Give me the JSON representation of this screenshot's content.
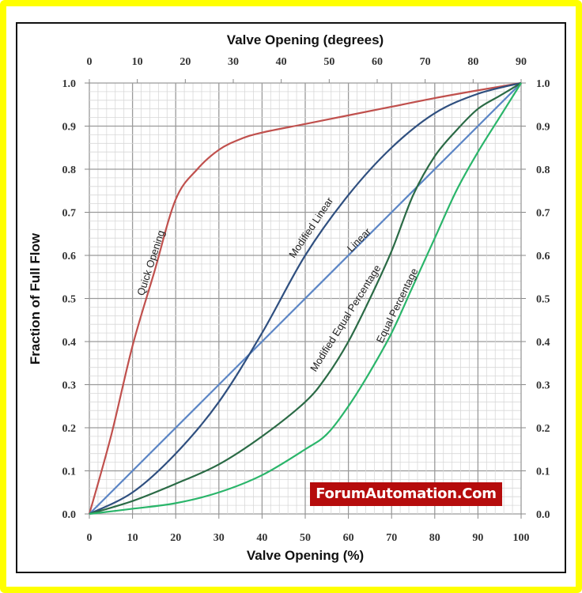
{
  "chart_data": {
    "type": "line",
    "title": "",
    "top_axis_title": "Valve Opening (degrees)",
    "xlabel": "Valve Opening (%)",
    "ylabel": "Fraction of Full Flow",
    "xlim": [
      0,
      100
    ],
    "ylim": [
      0,
      1.0
    ],
    "grid": true,
    "x_ticks": [
      "0",
      "10",
      "20",
      "30",
      "40",
      "50",
      "60",
      "70",
      "80",
      "90",
      "100"
    ],
    "top_ticks": [
      "0",
      "10",
      "20",
      "30",
      "40",
      "50",
      "60",
      "70",
      "80",
      "90"
    ],
    "y_ticks": [
      "0.0",
      "0.1",
      "0.2",
      "0.3",
      "0.4",
      "0.5",
      "0.6",
      "0.7",
      "0.8",
      "0.9",
      "1.0"
    ],
    "series": [
      {
        "name": "Quick Opening",
        "color": "#c0504d",
        "x": [
          0,
          5,
          10,
          15,
          20,
          25,
          30,
          35,
          40,
          50,
          60,
          70,
          80,
          90,
          100
        ],
        "values": [
          0,
          0.18,
          0.39,
          0.56,
          0.73,
          0.8,
          0.845,
          0.87,
          0.885,
          0.905,
          0.925,
          0.945,
          0.965,
          0.983,
          1.0
        ]
      },
      {
        "name": "Linear",
        "color": "#5b85c5",
        "x": [
          0,
          100
        ],
        "values": [
          0,
          1.0
        ]
      },
      {
        "name": "Modified Linear",
        "color": "#2f4f7f",
        "x": [
          0,
          10,
          20,
          30,
          40,
          50,
          60,
          70,
          80,
          90,
          100
        ],
        "values": [
          0,
          0.05,
          0.14,
          0.26,
          0.42,
          0.6,
          0.74,
          0.85,
          0.93,
          0.975,
          1.0
        ]
      },
      {
        "name": "Modified Equal Percentage",
        "color": "#2a6a45",
        "x": [
          0,
          10,
          20,
          30,
          40,
          50,
          55,
          60,
          65,
          70,
          75,
          80,
          85,
          90,
          95,
          100
        ],
        "values": [
          0,
          0.03,
          0.07,
          0.115,
          0.18,
          0.26,
          0.32,
          0.4,
          0.5,
          0.61,
          0.74,
          0.83,
          0.89,
          0.94,
          0.97,
          1.0
        ]
      },
      {
        "name": "Equal Percentage",
        "color": "#2ab56a",
        "x": [
          0,
          10,
          20,
          30,
          40,
          50,
          55,
          60,
          65,
          70,
          75,
          80,
          85,
          90,
          95,
          100
        ],
        "values": [
          0,
          0.012,
          0.025,
          0.05,
          0.09,
          0.15,
          0.185,
          0.25,
          0.33,
          0.42,
          0.53,
          0.64,
          0.75,
          0.84,
          0.92,
          1.0
        ]
      }
    ],
    "annotations": [
      {
        "text": "Quick Opening",
        "x": 15,
        "y": 0.58
      },
      {
        "text": "Modified Linear",
        "x": 52,
        "y": 0.66
      },
      {
        "text": "Linear",
        "x": 63,
        "y": 0.63
      },
      {
        "text": "Modified Equal Percentage",
        "x": 60,
        "y": 0.45
      },
      {
        "text": "Equal Percentage",
        "x": 72,
        "y": 0.48
      }
    ]
  },
  "watermark": {
    "text": "ForumAutomation.Com",
    "bg": "#b50c0c",
    "color": "#ffffff"
  },
  "colors": {
    "frame": "#ffff00",
    "grid_major": "#9a9a9a",
    "grid_minor": "#d8d8d8"
  }
}
